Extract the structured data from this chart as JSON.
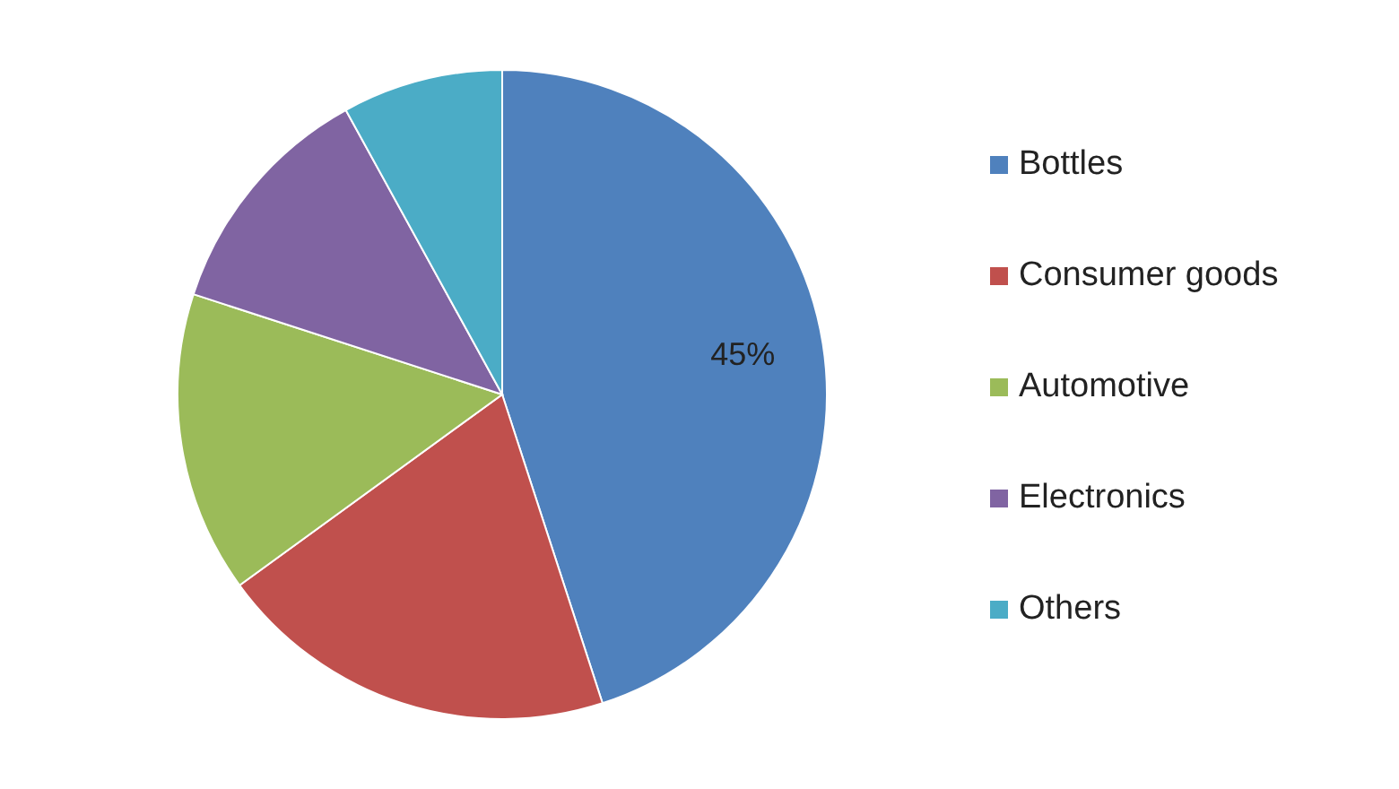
{
  "chart_data": {
    "type": "pie",
    "categories": [
      "Bottles",
      "Consumer goods",
      "Automotive",
      "Electronics",
      "Others"
    ],
    "values": [
      45,
      20,
      15,
      12,
      8
    ],
    "colors": [
      "#4f81bd",
      "#c0504d",
      "#9bbb59",
      "#8064a2",
      "#4bacc6"
    ],
    "value_labels": [
      "45%",
      null,
      null,
      null,
      null
    ],
    "legend": "right"
  }
}
